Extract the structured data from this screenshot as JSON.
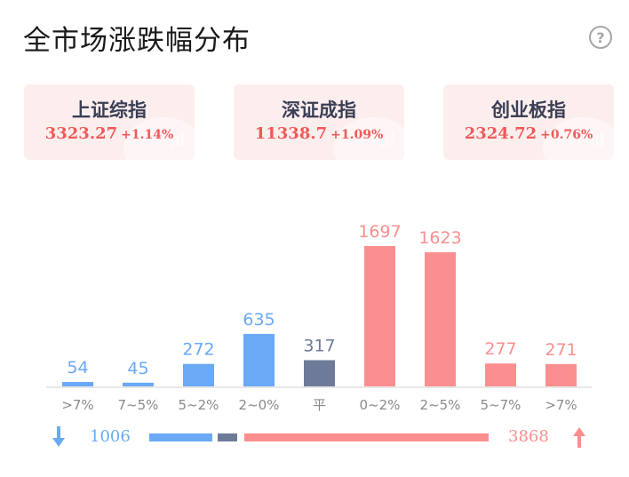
{
  "title": "全市场涨跌幅分布",
  "help_icon": "question-circle-icon",
  "help_text": "?",
  "indices": [
    {
      "name": "上证综指",
      "price": "3323.27",
      "change": "+1.14%"
    },
    {
      "name": "深证成指",
      "price": "11338.7",
      "change": "+1.09%"
    },
    {
      "name": "创业板指",
      "price": "2324.72",
      "change": "+0.76%"
    }
  ],
  "colors": {
    "down": "#6aa9f5",
    "flat": "#6e7b98",
    "up": "#fb8f8f",
    "card_bg": "#fdeeee",
    "index_value": "#f05a5a"
  },
  "chart_data": {
    "type": "bar",
    "categories": [
      ">7%",
      "7~5%",
      "5~2%",
      "2~0%",
      "平",
      "0~2%",
      "2~5%",
      "5~7%",
      ">7%"
    ],
    "values": [
      54,
      45,
      272,
      635,
      317,
      1697,
      1623,
      277,
      271
    ],
    "groups": [
      "down",
      "down",
      "down",
      "down",
      "flat",
      "up",
      "up",
      "up",
      "up"
    ],
    "ylim": [
      0,
      1697
    ],
    "grid": false,
    "legend": "none"
  },
  "summary": {
    "down_count": "1006",
    "up_count": "3868",
    "down_icon": "arrow-down-icon",
    "up_icon": "arrow-up-icon"
  }
}
